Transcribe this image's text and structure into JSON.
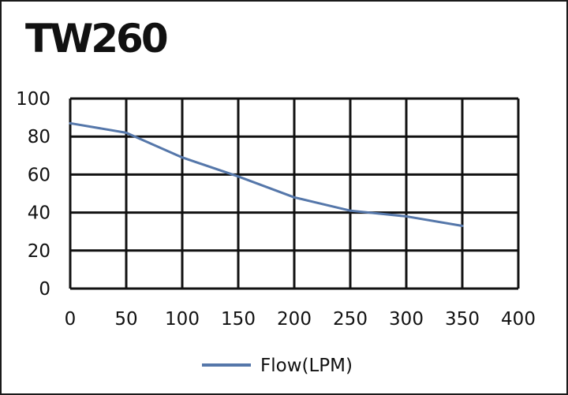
{
  "chart_data": {
    "type": "line",
    "title": "TW260",
    "xlabel": "",
    "ylabel": "",
    "x_ticks": [
      "0",
      "50",
      "100",
      "150",
      "200",
      "250",
      "300",
      "350",
      "400"
    ],
    "y_ticks": [
      "0",
      "20",
      "40",
      "60",
      "80",
      "100"
    ],
    "xlim": [
      0,
      400
    ],
    "ylim": [
      0,
      100
    ],
    "grid": true,
    "legend_position": "bottom-center",
    "series": [
      {
        "name": "Flow(LPM)",
        "color": "#5577aa",
        "x": [
          0,
          50,
          100,
          150,
          200,
          250,
          300,
          350
        ],
        "y": [
          87,
          82,
          69,
          59,
          48,
          41,
          38,
          33
        ]
      }
    ]
  }
}
